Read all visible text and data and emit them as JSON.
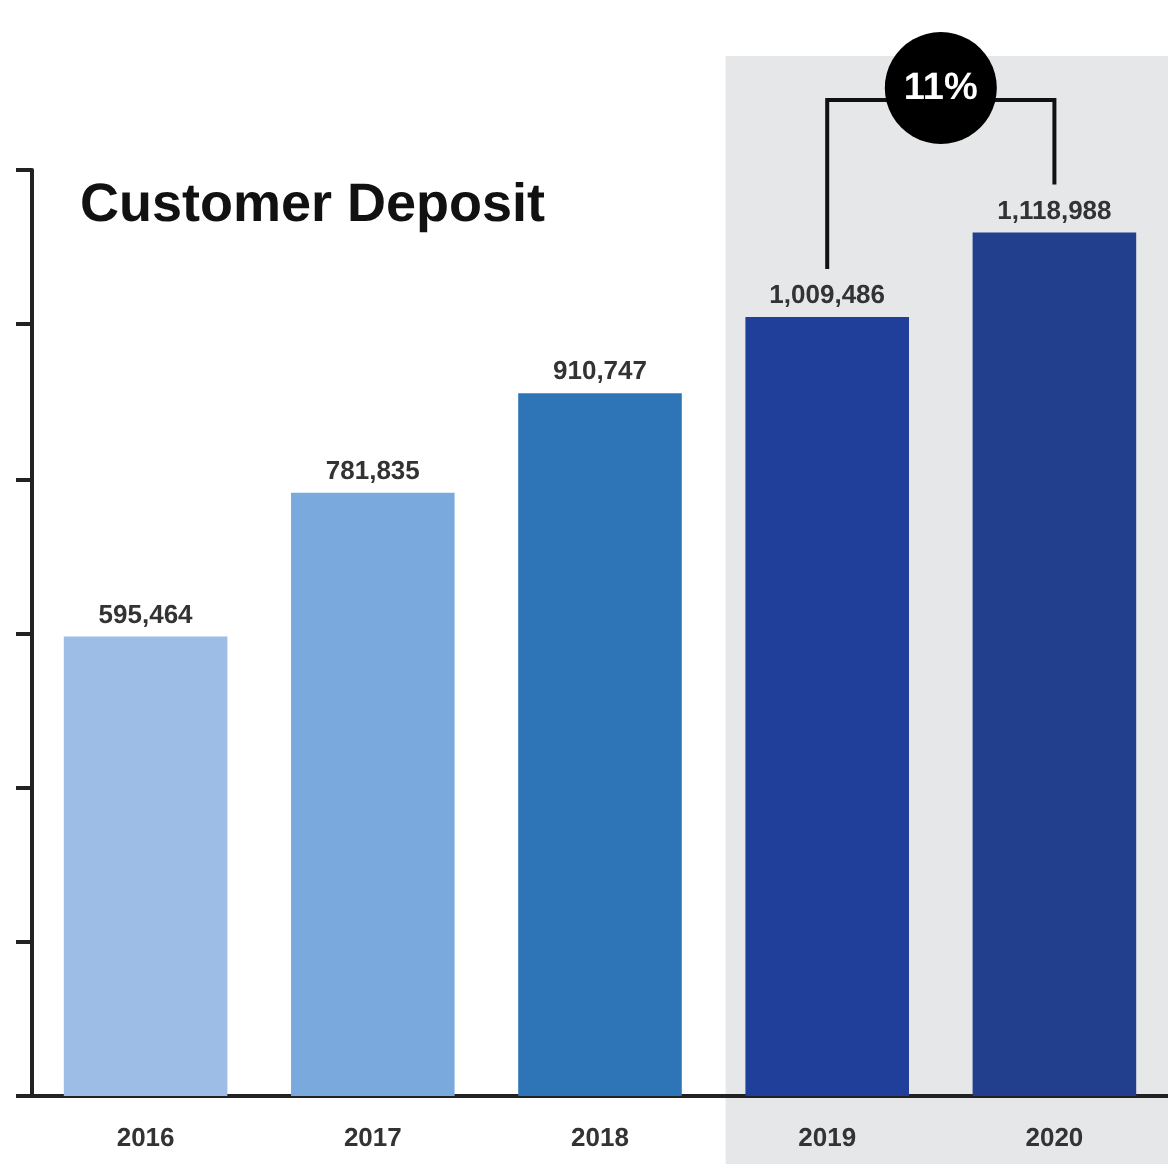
{
  "chart_data": {
    "type": "bar",
    "title": "Customer Deposit",
    "categories": [
      "2016",
      "2017",
      "2018",
      "2019",
      "2020"
    ],
    "values": [
      595464,
      781835,
      910747,
      1009486,
      1118988
    ],
    "value_labels": [
      "595,464",
      "781,835",
      "910,747",
      "1,009,486",
      "1,118,988"
    ],
    "colors": [
      "#9dbde6",
      "#7aaadd",
      "#2e75b8",
      "#1f3f9a",
      "#213f8c"
    ],
    "tick_labels": "x",
    "bands": [
      {
        "axis": "x",
        "from": "2019",
        "to": "2020",
        "color": "#e6e7e9"
      }
    ],
    "annotations": [
      "11%"
    ]
  }
}
